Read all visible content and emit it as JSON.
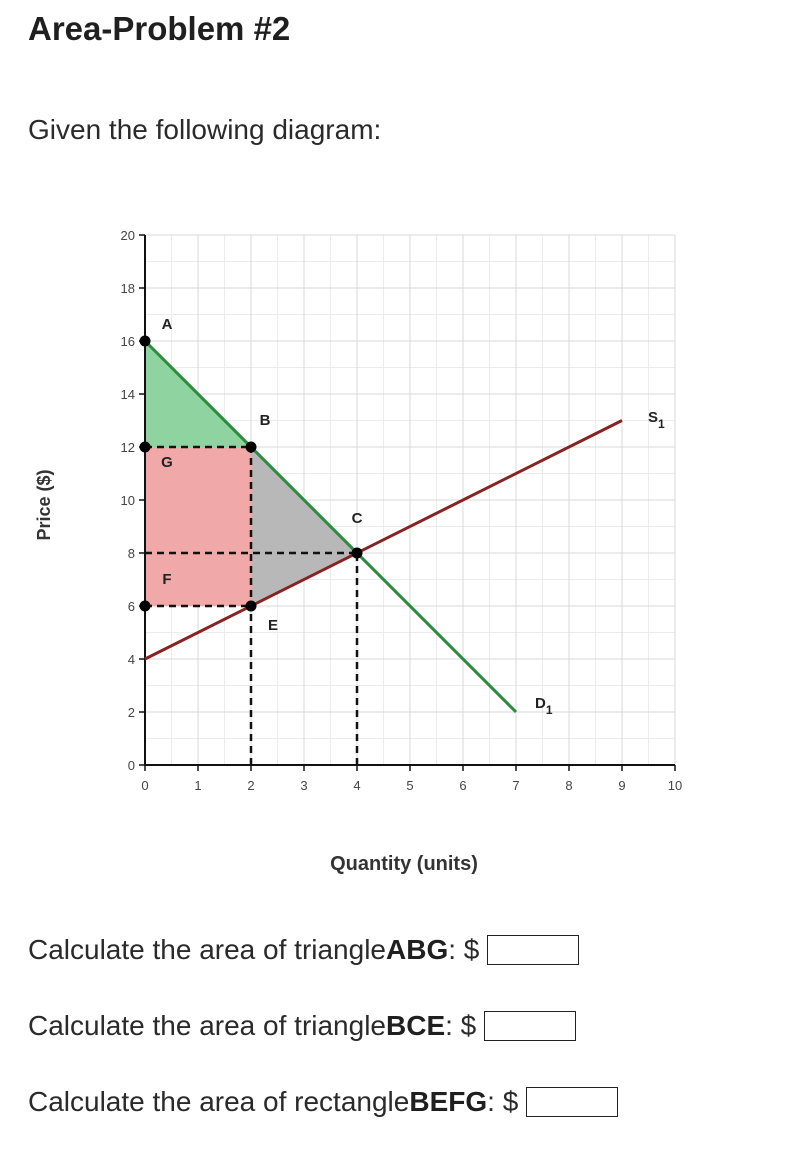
{
  "title": "Area-Problem #2",
  "intro": "Given the following diagram:",
  "questions": [
    {
      "prefix": "Calculate the area of triangle ",
      "shape": "ABG",
      "suffix": ": $",
      "value": ""
    },
    {
      "prefix": "Calculate the area of triangle ",
      "shape": "BCE",
      "suffix": ": $",
      "value": ""
    },
    {
      "prefix": "Calculate the area of rectangle ",
      "shape": "BEFG",
      "suffix": ": $",
      "value": ""
    }
  ],
  "chart_data": {
    "type": "line",
    "xlabel": "Quantity  (units)",
    "ylabel": "Price ($)",
    "xlim": [
      0,
      10
    ],
    "ylim": [
      0,
      20
    ],
    "x_ticks": [
      0,
      1,
      2,
      3,
      4,
      5,
      6,
      7,
      8,
      9,
      10
    ],
    "y_ticks": [
      0,
      2,
      4,
      6,
      8,
      10,
      12,
      14,
      16,
      18,
      20
    ],
    "grid": true,
    "series": [
      {
        "name": "D1",
        "color": "#2e8b3e",
        "points": [
          [
            0,
            16
          ],
          [
            7,
            2
          ]
        ]
      },
      {
        "name": "S1",
        "color": "#8b2020",
        "points": [
          [
            0,
            4
          ],
          [
            9,
            13
          ]
        ]
      }
    ],
    "points": [
      {
        "label": "A",
        "x": 0,
        "y": 16
      },
      {
        "label": "B",
        "x": 2,
        "y": 12
      },
      {
        "label": "C",
        "x": 4,
        "y": 8
      },
      {
        "label": "E",
        "x": 2,
        "y": 6
      },
      {
        "label": "F",
        "x": 0,
        "y": 6
      },
      {
        "label": "G",
        "x": 0,
        "y": 12
      }
    ],
    "regions": [
      {
        "name": "ABG",
        "color": "#8fd4a0",
        "vertices": [
          [
            0,
            16
          ],
          [
            2,
            12
          ],
          [
            0,
            12
          ]
        ]
      },
      {
        "name": "BEFG",
        "color": "#f0a8a8",
        "vertices": [
          [
            0,
            12
          ],
          [
            2,
            12
          ],
          [
            2,
            6
          ],
          [
            0,
            6
          ]
        ]
      },
      {
        "name": "BCE",
        "color": "#b8b8b8",
        "vertices": [
          [
            2,
            12
          ],
          [
            4,
            8
          ],
          [
            2,
            6
          ]
        ]
      }
    ],
    "dashed_lines": [
      {
        "from": [
          0,
          12
        ],
        "to": [
          2,
          12
        ]
      },
      {
        "from": [
          0,
          6
        ],
        "to": [
          2,
          6
        ]
      },
      {
        "from": [
          0,
          8
        ],
        "to": [
          4,
          8
        ]
      },
      {
        "from": [
          2,
          0
        ],
        "to": [
          2,
          12
        ]
      },
      {
        "from": [
          4,
          0
        ],
        "to": [
          4,
          8
        ]
      }
    ],
    "curve_labels": [
      {
        "main": "D",
        "sub": "1"
      },
      {
        "main": "S",
        "sub": "1"
      }
    ]
  }
}
